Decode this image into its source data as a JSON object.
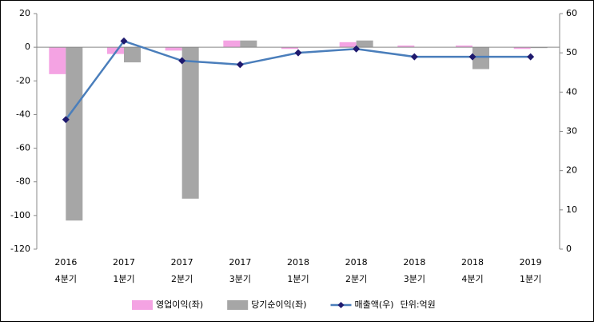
{
  "chart_data": {
    "type": "bar-line",
    "categories": [
      [
        "2016",
        "4분기"
      ],
      [
        "2017",
        "1분기"
      ],
      [
        "2017",
        "2분기"
      ],
      [
        "2017",
        "3분기"
      ],
      [
        "2018",
        "1분기"
      ],
      [
        "2018",
        "2분기"
      ],
      [
        "2018",
        "3분기"
      ],
      [
        "2018",
        "4분기"
      ],
      [
        "2019",
        "1분기"
      ]
    ],
    "series": [
      {
        "name": "영업이익(좌)",
        "color": "#f4a3e3",
        "type": "bar",
        "values": [
          -16,
          -4,
          -2,
          4,
          -1,
          3,
          1,
          1,
          -1
        ]
      },
      {
        "name": "당기순이익(좌)",
        "color": "#a6a6a6",
        "type": "bar",
        "values": [
          -103,
          -9,
          -90,
          4,
          0,
          4,
          0,
          -13,
          -0.5
        ]
      },
      {
        "name": "매출액(우)",
        "color": "#4a7ebb",
        "marker_color": "#1f1a6e",
        "type": "line",
        "axis": "y2",
        "values": [
          33,
          53,
          48,
          47,
          50,
          51,
          49,
          49,
          49
        ]
      }
    ],
    "annotation": "단위:억원",
    "ylim": [
      -120,
      20
    ],
    "yticks": [
      -120,
      -100,
      -80,
      -60,
      -40,
      -20,
      0,
      20
    ],
    "y2lim": [
      0,
      60
    ],
    "y2ticks": [
      0,
      10,
      20,
      30,
      40,
      50,
      60
    ]
  }
}
